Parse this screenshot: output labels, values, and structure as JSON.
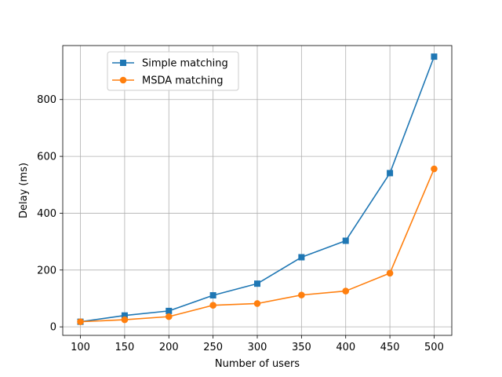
{
  "chart_data": {
    "type": "line",
    "title": "",
    "xlabel": "Number of users",
    "ylabel": "Delay (ms)",
    "x": [
      100,
      150,
      200,
      250,
      300,
      350,
      400,
      450,
      500
    ],
    "x_ticks": [
      100,
      150,
      200,
      250,
      300,
      350,
      400,
      450,
      500
    ],
    "y_ticks": [
      0,
      200,
      400,
      600,
      800
    ],
    "xlim": [
      80,
      520
    ],
    "ylim": [
      -30,
      990
    ],
    "grid": true,
    "legend_position": "top-left",
    "series": [
      {
        "name": "Simple matching",
        "marker": "square",
        "color": "#1f77b4",
        "values": [
          18,
          40,
          56,
          111,
          152,
          245,
          303,
          541,
          951
        ]
      },
      {
        "name": "MSDA matching",
        "marker": "circle",
        "color": "#ff7f0e",
        "values": [
          18,
          25,
          36,
          76,
          82,
          112,
          126,
          189,
          556
        ]
      }
    ]
  }
}
